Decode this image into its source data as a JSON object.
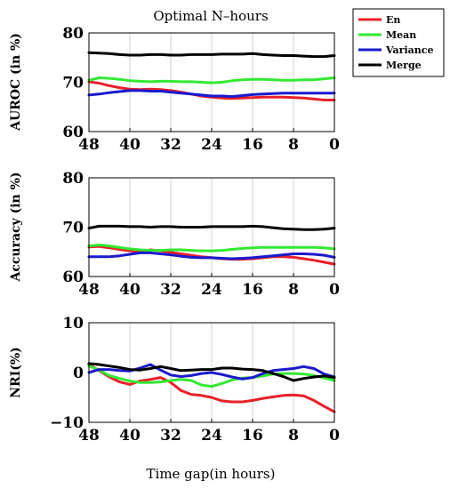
{
  "title": "Optimal N–hours",
  "xlabel": "Time gap(in hours)",
  "colors": {
    "En": "#e8202a",
    "Mean": "#33e833",
    "Variance": "#1a1acc",
    "Merge": "#000000"
  },
  "legend": {
    "placement": "top-right",
    "entries": [
      "En",
      "Mean",
      "Variance",
      "Merge"
    ]
  },
  "chart_data": [
    {
      "type": "line",
      "title": "Optimal N–hours",
      "xlabel": "",
      "ylabel": "AUROC (in %)",
      "xlim": [
        48,
        0
      ],
      "ylim": [
        60,
        80
      ],
      "xticks": [
        48,
        40,
        32,
        24,
        16,
        8,
        0
      ],
      "yticks": [
        60,
        70,
        80
      ],
      "yticklabels": [
        "60",
        "70",
        "80"
      ],
      "grid": "vertical",
      "x": [
        48,
        46,
        44,
        42,
        40,
        38,
        36,
        34,
        32,
        30,
        28,
        26,
        24,
        22,
        20,
        18,
        16,
        14,
        12,
        10,
        8,
        6,
        4,
        2,
        0
      ],
      "series": [
        {
          "name": "En",
          "values": [
            70.1,
            69.8,
            69.3,
            68.9,
            68.6,
            68.5,
            68.6,
            68.5,
            68.3,
            68.0,
            67.6,
            67.2,
            67.0,
            66.8,
            66.7,
            66.8,
            66.9,
            67.0,
            67.0,
            67.0,
            66.9,
            66.8,
            66.6,
            66.4,
            66.4
          ]
        },
        {
          "name": "Mean",
          "values": [
            70.4,
            70.9,
            70.8,
            70.6,
            70.3,
            70.2,
            70.1,
            70.2,
            70.2,
            70.1,
            70.1,
            70.0,
            69.9,
            70.0,
            70.3,
            70.5,
            70.6,
            70.6,
            70.5,
            70.4,
            70.4,
            70.5,
            70.5,
            70.7,
            70.9
          ]
        },
        {
          "name": "Variance",
          "values": [
            67.4,
            67.6,
            67.9,
            68.1,
            68.3,
            68.3,
            68.2,
            68.2,
            68.0,
            67.8,
            67.6,
            67.4,
            67.2,
            67.2,
            67.1,
            67.3,
            67.5,
            67.6,
            67.7,
            67.8,
            67.8,
            67.8,
            67.8,
            67.8,
            67.8
          ]
        },
        {
          "name": "Merge",
          "values": [
            76.0,
            75.9,
            75.8,
            75.6,
            75.5,
            75.5,
            75.6,
            75.6,
            75.5,
            75.5,
            75.6,
            75.6,
            75.6,
            75.7,
            75.7,
            75.7,
            75.8,
            75.6,
            75.5,
            75.4,
            75.4,
            75.3,
            75.2,
            75.2,
            75.4
          ]
        }
      ]
    },
    {
      "type": "line",
      "title": "",
      "xlabel": "",
      "ylabel": "Accuracy (in %)",
      "xlim": [
        48,
        0
      ],
      "ylim": [
        60,
        80
      ],
      "xticks": [
        48,
        40,
        32,
        24,
        16,
        8,
        0
      ],
      "yticks": [
        60,
        70,
        80
      ],
      "yticklabels": [
        "60",
        "70",
        "80"
      ],
      "grid": "vertical",
      "x": [
        48,
        46,
        44,
        42,
        40,
        38,
        36,
        34,
        32,
        30,
        28,
        26,
        24,
        22,
        20,
        18,
        16,
        14,
        12,
        10,
        8,
        6,
        4,
        2,
        0
      ],
      "series": [
        {
          "name": "En",
          "values": [
            66.0,
            66.1,
            65.8,
            65.5,
            65.2,
            65.0,
            65.4,
            65.2,
            64.9,
            64.6,
            64.3,
            64.0,
            63.8,
            63.6,
            63.5,
            63.5,
            63.6,
            63.8,
            64.0,
            64.0,
            63.9,
            63.6,
            63.3,
            62.9,
            62.5
          ]
        },
        {
          "name": "Mean",
          "values": [
            66.2,
            66.4,
            66.2,
            65.9,
            65.6,
            65.4,
            65.3,
            65.3,
            65.4,
            65.4,
            65.3,
            65.2,
            65.2,
            65.3,
            65.5,
            65.7,
            65.8,
            65.9,
            65.9,
            65.9,
            65.9,
            65.9,
            65.9,
            65.8,
            65.6
          ]
        },
        {
          "name": "Variance",
          "values": [
            64.0,
            64.0,
            64.0,
            64.2,
            64.5,
            64.8,
            64.8,
            64.6,
            64.4,
            64.1,
            63.9,
            63.8,
            63.8,
            63.7,
            63.6,
            63.7,
            63.8,
            64.0,
            64.2,
            64.4,
            64.6,
            64.6,
            64.5,
            64.3,
            63.9
          ]
        },
        {
          "name": "Merge",
          "values": [
            69.8,
            70.2,
            70.2,
            70.2,
            70.1,
            70.1,
            70.0,
            70.1,
            70.1,
            70.0,
            70.0,
            70.0,
            70.1,
            70.1,
            70.1,
            70.1,
            70.2,
            70.1,
            69.9,
            69.7,
            69.6,
            69.5,
            69.5,
            69.6,
            69.8
          ]
        }
      ]
    },
    {
      "type": "line",
      "title": "",
      "xlabel": "Time gap(in hours)",
      "ylabel": "NRI(%)",
      "xlim": [
        48,
        0
      ],
      "ylim": [
        -10,
        10
      ],
      "xticks": [
        48,
        40,
        32,
        24,
        16,
        8,
        0
      ],
      "yticks": [
        -10,
        0,
        10
      ],
      "yticklabels": [
        "−10",
        "0",
        "10"
      ],
      "grid": "vertical",
      "x": [
        48,
        46,
        44,
        42,
        40,
        38,
        36,
        34,
        32,
        30,
        28,
        26,
        24,
        22,
        20,
        18,
        16,
        14,
        12,
        10,
        8,
        6,
        4,
        2,
        0
      ],
      "series": [
        {
          "name": "En",
          "values": [
            1.6,
            0.4,
            -0.9,
            -1.9,
            -2.4,
            -1.7,
            -1.4,
            -1.0,
            -2.0,
            -3.6,
            -4.4,
            -4.6,
            -5.0,
            -5.7,
            -5.9,
            -5.9,
            -5.6,
            -5.2,
            -4.9,
            -4.6,
            -4.5,
            -4.7,
            -5.6,
            -6.8,
            -7.9
          ]
        },
        {
          "name": "Mean",
          "values": [
            1.3,
            0.5,
            -0.6,
            -1.2,
            -1.7,
            -2.0,
            -2.0,
            -1.9,
            -1.6,
            -1.4,
            -1.6,
            -2.5,
            -2.8,
            -2.2,
            -1.5,
            -1.1,
            -1.0,
            -0.7,
            -0.3,
            -0.2,
            -0.2,
            -0.3,
            -0.6,
            -1.1,
            -1.6
          ]
        },
        {
          "name": "Variance",
          "values": [
            0.0,
            0.6,
            0.6,
            0.4,
            0.3,
            0.9,
            1.6,
            0.5,
            -0.5,
            -0.8,
            -0.6,
            -0.2,
            0.0,
            -0.4,
            -0.9,
            -1.3,
            -1.0,
            -0.2,
            0.4,
            0.6,
            0.8,
            1.2,
            0.8,
            -0.3,
            -0.9
          ]
        },
        {
          "name": "Merge",
          "values": [
            1.8,
            1.6,
            1.3,
            1.0,
            0.6,
            0.5,
            0.8,
            1.2,
            0.8,
            0.4,
            0.5,
            0.6,
            0.6,
            0.9,
            0.9,
            0.7,
            0.6,
            0.4,
            -0.2,
            -0.8,
            -1.6,
            -1.2,
            -0.9,
            -0.7,
            -1.0
          ]
        }
      ]
    }
  ]
}
